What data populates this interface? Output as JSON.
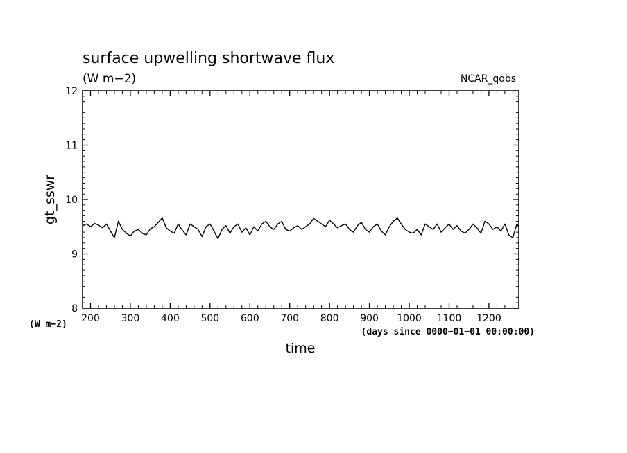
{
  "chart_data": {
    "type": "line",
    "title": "surface upwelling shortwave flux",
    "title_units": "(W m−2)",
    "source_label": "NCAR_qobs",
    "ylabel": "gt_sswr",
    "y_units_label": "(W m−2)",
    "xlabel": "time",
    "x_units_label": "(days since 0000−01−01 00:00:00)",
    "xlim": [
      180,
      1275
    ],
    "ylim": [
      8,
      12
    ],
    "x_ticks": [
      200,
      300,
      400,
      500,
      600,
      700,
      800,
      900,
      1000,
      1100,
      1200
    ],
    "y_ticks": [
      8,
      9,
      10,
      11,
      12
    ],
    "line_color": "#000000",
    "series": [
      {
        "x": [
          180,
          190,
          200,
          210,
          220,
          230,
          240,
          250,
          260,
          270,
          280,
          290,
          300,
          310,
          320,
          330,
          340,
          350,
          360,
          370,
          380,
          390,
          400,
          410,
          420,
          430,
          440,
          450,
          460,
          470,
          480,
          490,
          500,
          510,
          520,
          530,
          540,
          550,
          560,
          570,
          580,
          590,
          600,
          610,
          620,
          630,
          640,
          650,
          660,
          670,
          680,
          690,
          700,
          710,
          720,
          730,
          740,
          750,
          760,
          770,
          780,
          790,
          800,
          810,
          820,
          830,
          840,
          850,
          860,
          870,
          880,
          890,
          900,
          910,
          920,
          930,
          940,
          950,
          960,
          970,
          980,
          990,
          1000,
          1010,
          1020,
          1030,
          1040,
          1050,
          1060,
          1070,
          1080,
          1090,
          1100,
          1110,
          1120,
          1130,
          1140,
          1150,
          1160,
          1170,
          1180,
          1190,
          1200,
          1210,
          1220,
          1230,
          1240,
          1250,
          1260,
          1270,
          1275
        ],
        "values": [
          9.52,
          9.55,
          9.5,
          9.56,
          9.53,
          9.48,
          9.55,
          9.42,
          9.3,
          9.6,
          9.45,
          9.38,
          9.33,
          9.42,
          9.45,
          9.38,
          9.35,
          9.46,
          9.5,
          9.58,
          9.66,
          9.48,
          9.42,
          9.38,
          9.55,
          9.44,
          9.35,
          9.55,
          9.5,
          9.45,
          9.32,
          9.5,
          9.55,
          9.42,
          9.28,
          9.45,
          9.52,
          9.38,
          9.5,
          9.55,
          9.4,
          9.48,
          9.35,
          9.5,
          9.42,
          9.55,
          9.6,
          9.5,
          9.45,
          9.55,
          9.6,
          9.45,
          9.42,
          9.48,
          9.52,
          9.45,
          9.5,
          9.55,
          9.65,
          9.6,
          9.55,
          9.5,
          9.62,
          9.55,
          9.48,
          9.52,
          9.55,
          9.45,
          9.4,
          9.52,
          9.58,
          9.45,
          9.4,
          9.5,
          9.55,
          9.42,
          9.35,
          9.5,
          9.6,
          9.66,
          9.55,
          9.45,
          9.4,
          9.38,
          9.45,
          9.35,
          9.55,
          9.5,
          9.45,
          9.55,
          9.4,
          9.48,
          9.55,
          9.45,
          9.52,
          9.42,
          9.38,
          9.45,
          9.55,
          9.48,
          9.38,
          9.6,
          9.55,
          9.45,
          9.5,
          9.42,
          9.55,
          9.35,
          9.3,
          9.55,
          9.5
        ]
      }
    ]
  }
}
